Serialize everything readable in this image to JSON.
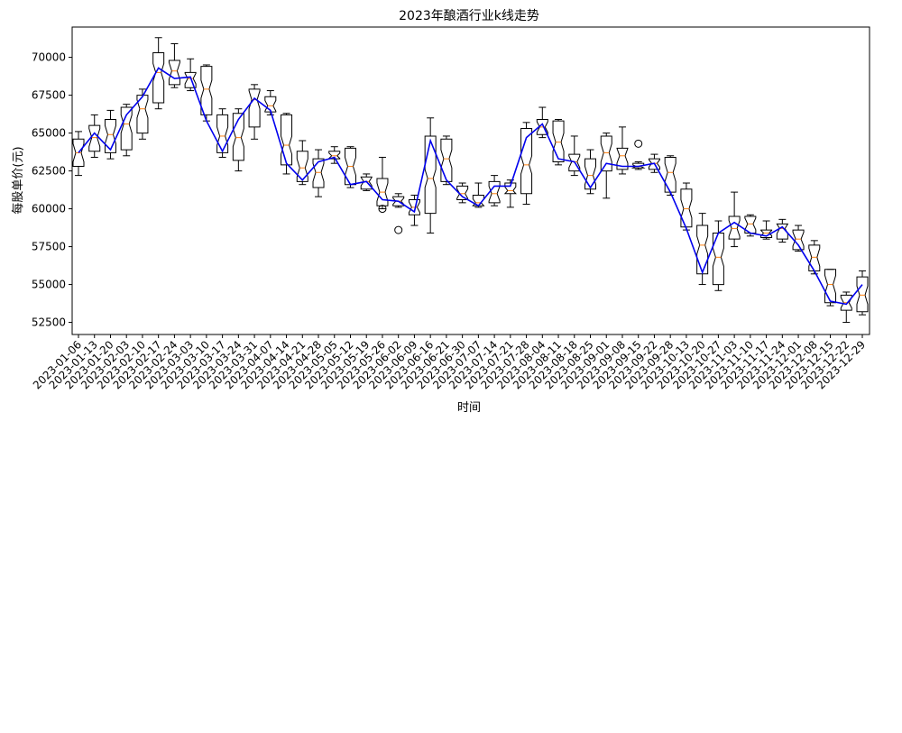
{
  "chart_data": {
    "type": "box",
    "title": "2023年酿酒行业k线走势",
    "xlabel": "时间",
    "ylabel": "每股单价(元)",
    "ylim": [
      51700,
      72000
    ],
    "yticks": [
      52500,
      55000,
      57500,
      60000,
      62500,
      65000,
      67500,
      70000
    ],
    "categories": [
      "2023-01-06",
      "2023-01-13",
      "2023-01-20",
      "2023-02-03",
      "2023-02-10",
      "2023-02-17",
      "2023-02-24",
      "2023-03-03",
      "2023-03-10",
      "2023-03-17",
      "2023-03-24",
      "2023-03-31",
      "2023-04-07",
      "2023-04-14",
      "2023-04-21",
      "2023-04-28",
      "2023-05-05",
      "2023-05-12",
      "2023-05-19",
      "2023-05-26",
      "2023-06-02",
      "2023-06-09",
      "2023-06-16",
      "2023-06-21",
      "2023-06-30",
      "2023-07-07",
      "2023-07-14",
      "2023-07-21",
      "2023-07-28",
      "2023-08-04",
      "2023-08-11",
      "2023-08-18",
      "2023-08-25",
      "2023-09-01",
      "2023-09-08",
      "2023-09-15",
      "2023-09-22",
      "2023-09-28",
      "2023-10-13",
      "2023-10-20",
      "2023-10-27",
      "2023-11-03",
      "2023-11-10",
      "2023-11-17",
      "2023-11-24",
      "2023-12-01",
      "2023-12-08",
      "2023-12-15",
      "2023-12-22",
      "2023-12-29"
    ],
    "line": {
      "color": "#0000ee",
      "values": [
        63700,
        65000,
        63900,
        66200,
        67400,
        69300,
        68600,
        68700,
        65800,
        63800,
        65900,
        67300,
        66500,
        63000,
        61900,
        63100,
        63400,
        61600,
        61800,
        60600,
        60500,
        59800,
        64500,
        61900,
        60800,
        60200,
        61500,
        61500,
        64700,
        65600,
        63300,
        63100,
        61400,
        63000,
        62800,
        62800,
        63000,
        61100,
        58700,
        55800,
        58400,
        59100,
        58400,
        58200,
        58800,
        57600,
        55900,
        53900,
        53700,
        55000
      ]
    },
    "boxes": [
      {
        "whislo": 62200,
        "q1": 62800,
        "med": 63700,
        "q3": 64600,
        "whishi": 65100
      },
      {
        "whislo": 63400,
        "q1": 63800,
        "med": 64700,
        "q3": 65500,
        "whishi": 66200
      },
      {
        "whislo": 63300,
        "q1": 63700,
        "med": 64900,
        "q3": 65900,
        "whishi": 66500
      },
      {
        "whislo": 63500,
        "q1": 63900,
        "med": 65600,
        "q3": 66700,
        "whishi": 66900
      },
      {
        "whislo": 64600,
        "q1": 65000,
        "med": 66600,
        "q3": 67500,
        "whishi": 67900
      },
      {
        "whislo": 66600,
        "q1": 67000,
        "med": 69000,
        "q3": 70300,
        "whishi": 71300
      },
      {
        "whislo": 68000,
        "q1": 68200,
        "med": 69100,
        "q3": 69800,
        "whishi": 70900
      },
      {
        "whislo": 67800,
        "q1": 68000,
        "med": 68600,
        "q3": 69000,
        "whishi": 69900
      },
      {
        "whislo": 65800,
        "q1": 66200,
        "med": 67900,
        "q3": 69400,
        "whishi": 69500
      },
      {
        "whislo": 63400,
        "q1": 63700,
        "med": 64800,
        "q3": 66200,
        "whishi": 66600
      },
      {
        "whislo": 62500,
        "q1": 63200,
        "med": 64700,
        "q3": 66300,
        "whishi": 66600
      },
      {
        "whislo": 64600,
        "q1": 65400,
        "med": 67200,
        "q3": 67900,
        "whishi": 68200
      },
      {
        "whislo": 66200,
        "q1": 66400,
        "med": 66800,
        "q3": 67400,
        "whishi": 67800
      },
      {
        "whislo": 62300,
        "q1": 62900,
        "med": 64200,
        "q3": 66200,
        "whishi": 66300
      },
      {
        "whislo": 61600,
        "q1": 61800,
        "med": 62700,
        "q3": 63800,
        "whishi": 64500
      },
      {
        "whislo": 60800,
        "q1": 61400,
        "med": 62400,
        "q3": 63300,
        "whishi": 63900
      },
      {
        "whislo": 63000,
        "q1": 63300,
        "med": 63500,
        "q3": 63800,
        "whishi": 64100
      },
      {
        "whislo": 61400,
        "q1": 61600,
        "med": 62800,
        "q3": 64000,
        "whishi": 64100
      },
      {
        "whislo": 61200,
        "q1": 61300,
        "med": 61800,
        "q3": 62100,
        "whishi": 62300
      },
      {
        "whislo": 60000,
        "q1": 60200,
        "med": 61100,
        "q3": 62000,
        "whishi": 63400,
        "fliers": [
          60000
        ]
      },
      {
        "whislo": 60100,
        "q1": 60200,
        "med": 60500,
        "q3": 60800,
        "whishi": 61000,
        "fliers": [
          58600
        ]
      },
      {
        "whislo": 58900,
        "q1": 59600,
        "med": 60100,
        "q3": 60600,
        "whishi": 60900
      },
      {
        "whislo": 58400,
        "q1": 59700,
        "med": 62000,
        "q3": 64800,
        "whishi": 66000
      },
      {
        "whislo": 61600,
        "q1": 61800,
        "med": 63300,
        "q3": 64600,
        "whishi": 64800
      },
      {
        "whislo": 60400,
        "q1": 60600,
        "med": 61000,
        "q3": 61500,
        "whishi": 61700
      },
      {
        "whislo": 60100,
        "q1": 60200,
        "med": 60400,
        "q3": 60900,
        "whishi": 61700
      },
      {
        "whislo": 60200,
        "q1": 60400,
        "med": 61000,
        "q3": 61800,
        "whishi": 62200
      },
      {
        "whislo": 60100,
        "q1": 61000,
        "med": 61200,
        "q3": 61700,
        "whishi": 61900
      },
      {
        "whislo": 60300,
        "q1": 61000,
        "med": 62900,
        "q3": 65300,
        "whishi": 65700
      },
      {
        "whislo": 64700,
        "q1": 64900,
        "med": 65400,
        "q3": 65900,
        "whishi": 66700
      },
      {
        "whislo": 62900,
        "q1": 63100,
        "med": 64400,
        "q3": 65800,
        "whishi": 65900
      },
      {
        "whislo": 62200,
        "q1": 62500,
        "med": 63100,
        "q3": 63600,
        "whishi": 64800
      },
      {
        "whislo": 61000,
        "q1": 61300,
        "med": 62200,
        "q3": 63300,
        "whishi": 63900
      },
      {
        "whislo": 60700,
        "q1": 62500,
        "med": 63700,
        "q3": 64800,
        "whishi": 65000
      },
      {
        "whislo": 62300,
        "q1": 62600,
        "med": 63500,
        "q3": 64000,
        "whishi": 65400
      },
      {
        "whislo": 62600,
        "q1": 62700,
        "med": 62800,
        "q3": 63000,
        "whishi": 63100,
        "fliers": [
          64300
        ]
      },
      {
        "whislo": 62400,
        "q1": 62600,
        "med": 63000,
        "q3": 63300,
        "whishi": 63600
      },
      {
        "whislo": 60900,
        "q1": 61100,
        "med": 62400,
        "q3": 63400,
        "whishi": 63500
      },
      {
        "whislo": 58600,
        "q1": 58800,
        "med": 60000,
        "q3": 61300,
        "whishi": 61700
      },
      {
        "whislo": 55000,
        "q1": 55700,
        "med": 57600,
        "q3": 58900,
        "whishi": 59700
      },
      {
        "whislo": 54600,
        "q1": 55000,
        "med": 56800,
        "q3": 58400,
        "whishi": 59200
      },
      {
        "whislo": 57500,
        "q1": 58000,
        "med": 58700,
        "q3": 59500,
        "whishi": 61100
      },
      {
        "whislo": 58200,
        "q1": 58400,
        "med": 59000,
        "q3": 59500,
        "whishi": 59600
      },
      {
        "whislo": 58000,
        "q1": 58100,
        "med": 58400,
        "q3": 58600,
        "whishi": 59200
      },
      {
        "whislo": 57800,
        "q1": 58000,
        "med": 58700,
        "q3": 59000,
        "whishi": 59300
      },
      {
        "whislo": 57200,
        "q1": 57300,
        "med": 58000,
        "q3": 58600,
        "whishi": 58900
      },
      {
        "whislo": 55700,
        "q1": 55900,
        "med": 56800,
        "q3": 57600,
        "whishi": 57900
      },
      {
        "whislo": 53600,
        "q1": 53800,
        "med": 55000,
        "q3": 56000,
        "whishi": 56000
      },
      {
        "whislo": 52500,
        "q1": 53300,
        "med": 53800,
        "q3": 54300,
        "whishi": 54500
      },
      {
        "whislo": 53000,
        "q1": 53200,
        "med": 54300,
        "q3": 55500,
        "whishi": 55900
      }
    ],
    "grid": false,
    "legend": "none",
    "box_style": "notched",
    "box_color": "#000000",
    "median_color": "#ff7f0e"
  }
}
